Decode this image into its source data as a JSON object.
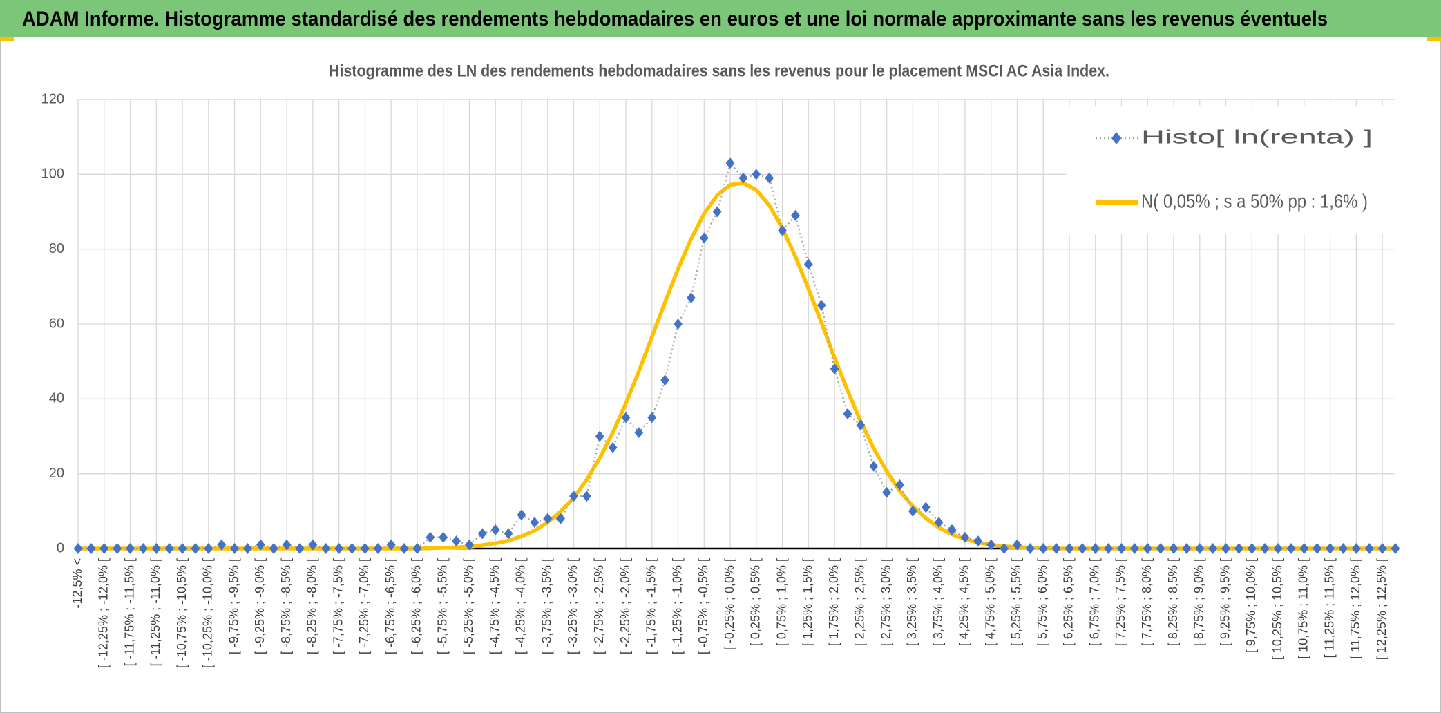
{
  "header": {
    "title": "ADAM Informe. Histogramme standardisé des rendements hebdomadaires en euros et une loi normale approximante sans les revenus éventuels"
  },
  "chart_data": {
    "type": "line",
    "title": "Histogramme des LN des rendements hebdomadaires sans les revenus pour le placement MSCI AC Asia Index.",
    "categories": [
      "-12,5% <",
      null,
      "[ -12,25% ; -12,0% [",
      null,
      "[ -11,75% ; -11,5% [",
      null,
      "[ -11,25% ; -11,0% [",
      null,
      "[ -10,75% ; -10,5% [",
      null,
      "[ -10,25% ; -10,0% [",
      null,
      "[ -9,75% ; -9,5% [",
      null,
      "[ -9,25% ; -9,0% [",
      null,
      "[ -8,75% ; -8,5% [",
      null,
      "[ -8,25% ; -8,0% [",
      null,
      "[ -7,75% ; -7,5% [",
      null,
      "[ -7,25% ; -7,0% [",
      null,
      "[ -6,75% ; -6,5% [",
      null,
      "[ -6,25% ; -6,0% [",
      null,
      "[ -5,75% ; -5,5% [",
      null,
      "[ -5,25% ; -5,0% [",
      null,
      "[ -4,75% ; -4,5% [",
      null,
      "[ -4,25% ; -4,0% [",
      null,
      "[ -3,75% ; -3,5% [",
      null,
      "[ -3,25% ; -3,0% [",
      null,
      "[ -2,75% ; -2,5% [",
      null,
      "[ -2,25% ; -2,0% [",
      null,
      "[ -1,75% ; -1,5% [",
      null,
      "[ -1,25% ; -1,0% [",
      null,
      "[ -0,75% ; -0,5% [",
      null,
      "[ -0,25% ; 0,0% [",
      null,
      "[ 0,25% ; 0,5% [",
      null,
      "[ 0,75% ; 1,0% [",
      null,
      "[ 1,25% ; 1,5% [",
      null,
      "[ 1,75% ; 2,0% [",
      null,
      "[ 2,25% ; 2,5% [",
      null,
      "[ 2,75% ; 3,0% [",
      null,
      "[ 3,25% ; 3,5% [",
      null,
      "[ 3,75% ; 4,0% [",
      null,
      "[ 4,25% ; 4,5% [",
      null,
      "[ 4,75% ; 5,0% [",
      null,
      "[ 5,25% ; 5,5% [",
      null,
      "[ 5,75% ; 6,0% [",
      null,
      "[ 6,25% ; 6,5% [",
      null,
      "[ 6,75% ; 7,0% [",
      null,
      "[ 7,25% ; 7,5% [",
      null,
      "[ 7,75% ; 8,0% [",
      null,
      "[ 8,25% ; 8,5% [",
      null,
      "[ 8,75% ; 9,0% [",
      null,
      "[ 9,25% ; 9,5% [",
      null,
      "[ 9,75% ; 10,0% [",
      null,
      "[ 10,25% ; 10,5% [",
      null,
      "[ 10,75% ; 11,0% [",
      null,
      "[ 11,25% ; 11,5% [",
      null,
      "[ 11,75% ; 12,0% [",
      null,
      "[ 12,25% ; 12,5% [",
      null
    ],
    "series": [
      {
        "name": "Histo[ ln(renta) ]",
        "color": "#4472c4",
        "values": [
          0,
          0,
          0,
          0,
          0,
          0,
          0,
          0,
          0,
          0,
          0,
          1,
          0,
          0,
          1,
          0,
          1,
          0,
          1,
          0,
          0,
          0,
          0,
          0,
          1,
          0,
          0,
          3,
          3,
          2,
          1,
          4,
          5,
          4,
          9,
          7,
          8,
          8,
          14,
          14,
          30,
          27,
          35,
          31,
          35,
          45,
          60,
          67,
          83,
          90,
          103,
          99,
          100,
          99,
          85,
          89,
          76,
          65,
          48,
          36,
          33,
          22,
          15,
          17,
          10,
          11,
          7,
          5,
          3,
          2,
          1,
          0,
          1,
          0,
          0,
          0,
          0,
          0,
          0,
          0,
          0,
          0,
          0,
          0,
          0,
          0,
          0,
          0,
          0,
          0,
          0,
          0,
          0,
          0,
          0,
          0,
          0,
          0,
          0,
          0,
          0,
          0
        ]
      },
      {
        "name": "N( 0,05% ; s a 50% pp : 1,6% )",
        "color": "#ffc000",
        "values": [
          0,
          0,
          0,
          0,
          0,
          0,
          0,
          0,
          0,
          0,
          0,
          0,
          0,
          0,
          0,
          0,
          0,
          0,
          0,
          0,
          0,
          0,
          0,
          0,
          0,
          0,
          0,
          0.1,
          0.2,
          0.3,
          0.5,
          0.9,
          1.4,
          2.1,
          3.3,
          4.8,
          7.0,
          9.9,
          13.6,
          18.4,
          24.2,
          31.0,
          38.8,
          47.4,
          56.6,
          65.8,
          74.7,
          82.7,
          89.5,
          94.4,
          97.2,
          97.7,
          95.8,
          91.7,
          85.6,
          78.0,
          69.4,
          60.3,
          51.0,
          42.2,
          34.0,
          26.8,
          20.6,
          15.4,
          11.3,
          8.1,
          5.6,
          3.8,
          2.5,
          1.6,
          1.0,
          0.6,
          0.4,
          0.2,
          0.1,
          0,
          0,
          0,
          0,
          0,
          0,
          0,
          0,
          0,
          0,
          0,
          0,
          0,
          0,
          0,
          0,
          0,
          0,
          0,
          0,
          0,
          0,
          0,
          0,
          0,
          0,
          0
        ]
      }
    ],
    "ylim": [
      0,
      120
    ],
    "yticks": [
      0,
      20,
      40,
      60,
      80,
      100,
      120
    ],
    "grid": true,
    "legend": "top-right"
  }
}
